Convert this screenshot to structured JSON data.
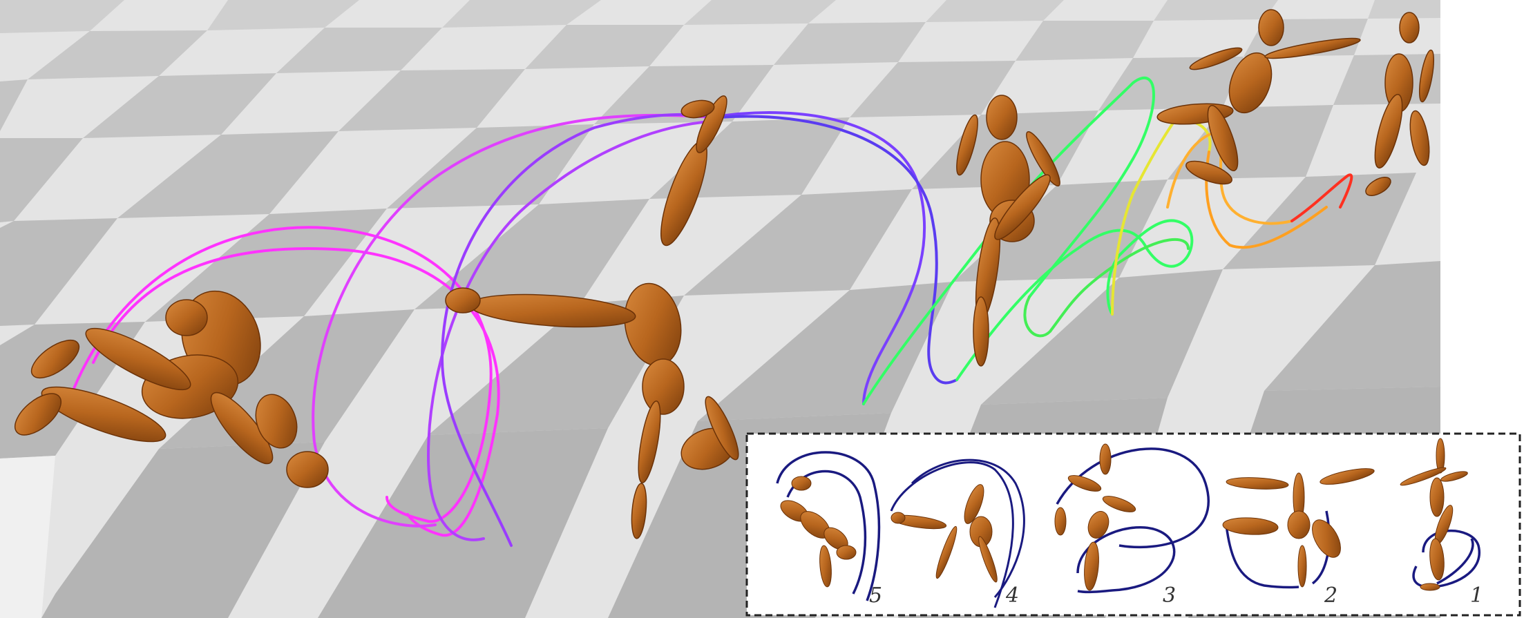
{
  "colors": {
    "floor_light": "#e6e6e6",
    "floor_dark": "#c6c6c6",
    "wood": "#b8661e",
    "wood_dark": "#7a3d0c",
    "wood_light": "#d98a3e",
    "trail_magenta": "#ff33ff",
    "trail_violet": "#a040ff",
    "trail_blue": "#5a3cf0",
    "trail_green": "#33ff66",
    "trail_yellow": "#e6e633",
    "trail_orange": "#ffb030",
    "trail_red": "#ff3020",
    "inset_curve": "#1a1a80",
    "inset_border": "#222222"
  },
  "inset": {
    "border_style": "dashed",
    "panels": [
      {
        "label": "5"
      },
      {
        "label": "4"
      },
      {
        "label": "3"
      },
      {
        "label": "2"
      },
      {
        "label": "1"
      }
    ]
  }
}
